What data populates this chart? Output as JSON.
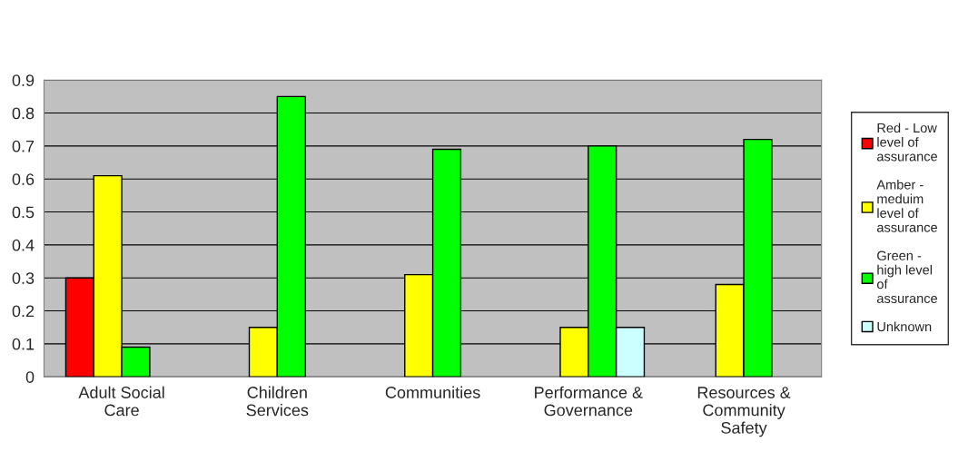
{
  "chart_data": {
    "type": "bar",
    "categories": [
      "Adult Social\nCare",
      "Children\nServices",
      "Communities",
      "Performance &\nGovernance",
      "Resources &\nCommunity\nSafety"
    ],
    "series": [
      {
        "name": "Red - Low\nlevel of\nassurance",
        "color": "#ff0000",
        "values": [
          0.3,
          null,
          null,
          null,
          null
        ]
      },
      {
        "name": "Amber -\nmeduim\nlevel of\nassurance",
        "color": "#ffff00",
        "values": [
          0.61,
          0.15,
          0.31,
          0.15,
          0.28
        ]
      },
      {
        "name": "Green -\nhigh level\nof\nassurance",
        "color": "#00ff00",
        "values": [
          0.09,
          0.85,
          0.69,
          0.7,
          0.72
        ]
      },
      {
        "name": "Unknown",
        "color": "#ccffff",
        "values": [
          null,
          null,
          null,
          0.15,
          null
        ]
      }
    ],
    "ylim": [
      0,
      0.9
    ],
    "yticks": [
      0,
      0.1,
      0.2,
      0.3,
      0.4,
      0.5,
      0.6,
      0.7,
      0.8,
      0.9
    ],
    "grid": "y",
    "legend": "right"
  }
}
